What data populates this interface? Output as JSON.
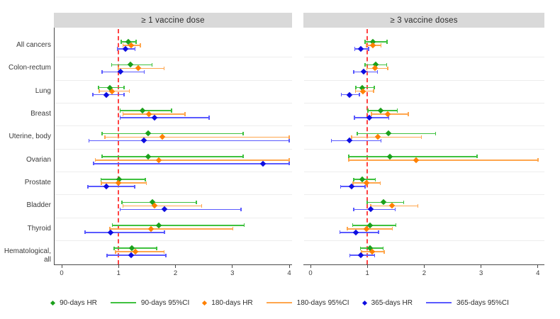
{
  "categories": [
    "All cancers",
    "Colon-rectum",
    "Lung",
    "Breast",
    "Uterine, body",
    "Ovarian",
    "Prostate",
    "Bladder",
    "Thyroid",
    "Hematological, all"
  ],
  "x_axis": {
    "min": 0,
    "max": 4,
    "ticks": [
      0,
      1,
      2,
      3,
      4
    ],
    "tick_labels": [
      "0",
      "1",
      "2",
      "3",
      "4"
    ],
    "reference_line": 1
  },
  "colors": {
    "green_marker": "#1ba01b",
    "green_line": "#3fc13f",
    "orange_marker": "#ff8000",
    "orange_line": "#ffa64d",
    "blue_marker": "#0d0de0",
    "blue_line": "#5a5aff",
    "reference": "#ff4444",
    "header_bg": "#d9d9d9",
    "axis": "#4a4a4a",
    "separator": "#ededed"
  },
  "legend": [
    {
      "label": "90-days HR",
      "swatch": "diamond",
      "color_key": "green_marker"
    },
    {
      "label": "90-days 95%CI",
      "swatch": "line",
      "color_key": "green_line"
    },
    {
      "label": "180-days HR",
      "swatch": "diamond",
      "color_key": "orange_marker"
    },
    {
      "label": "180-days 95%CI",
      "swatch": "line",
      "color_key": "orange_line"
    },
    {
      "label": "365-days HR",
      "swatch": "diamond",
      "color_key": "blue_marker"
    },
    {
      "label": "365-days 95%CI",
      "swatch": "line",
      "color_key": "blue_line"
    }
  ],
  "chart_data": [
    {
      "type": "scatter",
      "subtype": "forest-plot",
      "title": "≥ 1 vaccine dose",
      "xlabel": "",
      "xlim": [
        0,
        4
      ],
      "x_ticks": [
        0,
        1,
        2,
        3,
        4
      ],
      "reference_line_x": 1,
      "categories": [
        "All cancers",
        "Colon-rectum",
        "Lung",
        "Breast",
        "Uterine, body",
        "Ovarian",
        "Prostate",
        "Bladder",
        "Thyroid",
        "Hematological, all"
      ],
      "series": [
        {
          "name": "90-days HR",
          "color_key": "green",
          "points": [
            {
              "hr": 1.17,
              "lo": 1.05,
              "hi": 1.31
            },
            {
              "hr": 1.21,
              "lo": 0.88,
              "hi": 1.59
            },
            {
              "hr": 0.85,
              "lo": 0.65,
              "hi": 1.1
            },
            {
              "hr": 1.42,
              "lo": 1.03,
              "hi": 1.93
            },
            {
              "hr": 1.52,
              "lo": 0.71,
              "hi": 3.19
            },
            {
              "hr": 1.52,
              "lo": 0.71,
              "hi": 3.19
            },
            {
              "hr": 1.01,
              "lo": 0.69,
              "hi": 1.47
            },
            {
              "hr": 1.59,
              "lo": 1.06,
              "hi": 2.37
            },
            {
              "hr": 1.71,
              "lo": 0.89,
              "hi": 3.21
            },
            {
              "hr": 1.23,
              "lo": 0.92,
              "hi": 1.67
            }
          ]
        },
        {
          "name": "180-days HR",
          "color_key": "orange",
          "points": [
            {
              "hr": 1.22,
              "lo": 1.08,
              "hi": 1.38
            },
            {
              "hr": 1.35,
              "lo": 1.0,
              "hi": 1.8
            },
            {
              "hr": 0.89,
              "lo": 0.66,
              "hi": 1.19
            },
            {
              "hr": 1.53,
              "lo": 1.08,
              "hi": 2.17
            },
            {
              "hr": 1.77,
              "lo": 0.76,
              "hi": 4.0
            },
            {
              "hr": 1.71,
              "lo": 0.59,
              "hi": 4.0
            },
            {
              "hr": 1.0,
              "lo": 0.7,
              "hi": 1.49
            },
            {
              "hr": 1.63,
              "lo": 1.08,
              "hi": 2.46
            },
            {
              "hr": 1.57,
              "lo": 0.85,
              "hi": 3.01
            },
            {
              "hr": 1.3,
              "lo": 0.95,
              "hi": 1.8
            }
          ]
        },
        {
          "name": "365-days HR",
          "color_key": "blue",
          "points": [
            {
              "hr": 1.12,
              "lo": 0.98,
              "hi": 1.29
            },
            {
              "hr": 1.03,
              "lo": 0.71,
              "hi": 1.45
            },
            {
              "hr": 0.78,
              "lo": 0.55,
              "hi": 1.1
            },
            {
              "hr": 1.63,
              "lo": 1.03,
              "hi": 2.59
            },
            {
              "hr": 1.45,
              "lo": 0.48,
              "hi": 4.0
            },
            {
              "hr": 3.54,
              "lo": 0.56,
              "hi": 4.0
            },
            {
              "hr": 0.79,
              "lo": 0.46,
              "hi": 1.28
            },
            {
              "hr": 1.81,
              "lo": 1.03,
              "hi": 3.15
            },
            {
              "hr": 0.86,
              "lo": 0.41,
              "hi": 1.81
            },
            {
              "hr": 1.22,
              "lo": 0.8,
              "hi": 1.83
            }
          ]
        }
      ]
    },
    {
      "type": "scatter",
      "subtype": "forest-plot",
      "title": "≥ 3 vaccine doses",
      "xlabel": "",
      "xlim": [
        0,
        4
      ],
      "x_ticks": [
        0,
        1,
        2,
        3,
        4
      ],
      "reference_line_x": 1,
      "categories": [
        "All cancers",
        "Colon-rectum",
        "Lung",
        "Breast",
        "Uterine, body",
        "Ovarian",
        "Prostate",
        "Bladder",
        "Thyroid",
        "Hematological, all"
      ],
      "series": [
        {
          "name": "90-days HR",
          "color_key": "green",
          "points": [
            {
              "hr": 1.1,
              "lo": 0.96,
              "hi": 1.35
            },
            {
              "hr": 1.15,
              "lo": 0.96,
              "hi": 1.34
            },
            {
              "hr": 0.91,
              "lo": 0.8,
              "hi": 1.12
            },
            {
              "hr": 1.23,
              "lo": 1.01,
              "hi": 1.53
            },
            {
              "hr": 1.37,
              "lo": 0.82,
              "hi": 2.2
            },
            {
              "hr": 1.4,
              "lo": 0.67,
              "hi": 2.93
            },
            {
              "hr": 0.91,
              "lo": 0.76,
              "hi": 1.14
            },
            {
              "hr": 1.28,
              "lo": 1.0,
              "hi": 1.64
            },
            {
              "hr": 1.05,
              "lo": 0.74,
              "hi": 1.5
            },
            {
              "hr": 1.05,
              "lo": 0.88,
              "hi": 1.28
            }
          ]
        },
        {
          "name": "180-days HR",
          "color_key": "orange",
          "points": [
            {
              "hr": 1.1,
              "lo": 0.98,
              "hi": 1.24
            },
            {
              "hr": 1.13,
              "lo": 0.99,
              "hi": 1.36
            },
            {
              "hr": 0.92,
              "lo": 0.79,
              "hi": 1.11
            },
            {
              "hr": 1.36,
              "lo": 1.07,
              "hi": 1.72
            },
            {
              "hr": 1.19,
              "lo": 0.72,
              "hi": 1.95
            },
            {
              "hr": 1.86,
              "lo": 0.67,
              "hi": 4.0
            },
            {
              "hr": 0.98,
              "lo": 0.75,
              "hi": 1.23
            },
            {
              "hr": 1.44,
              "lo": 1.06,
              "hi": 1.89
            },
            {
              "hr": 0.98,
              "lo": 0.65,
              "hi": 1.44
            },
            {
              "hr": 1.08,
              "lo": 0.9,
              "hi": 1.3
            }
          ]
        },
        {
          "name": "365-days HR",
          "color_key": "blue",
          "points": [
            {
              "hr": 0.89,
              "lo": 0.78,
              "hi": 1.02
            },
            {
              "hr": 0.94,
              "lo": 0.76,
              "hi": 1.18
            },
            {
              "hr": 0.69,
              "lo": 0.54,
              "hi": 0.86
            },
            {
              "hr": 1.03,
              "lo": 0.77,
              "hi": 1.38
            },
            {
              "hr": 0.69,
              "lo": 0.37,
              "hi": 1.24
            },
            null,
            {
              "hr": 0.72,
              "lo": 0.53,
              "hi": 0.96
            },
            {
              "hr": 1.06,
              "lo": 0.76,
              "hi": 1.49
            },
            {
              "hr": 0.8,
              "lo": 0.52,
              "hi": 1.2
            },
            {
              "hr": 0.89,
              "lo": 0.69,
              "hi": 1.13
            }
          ]
        }
      ]
    }
  ]
}
